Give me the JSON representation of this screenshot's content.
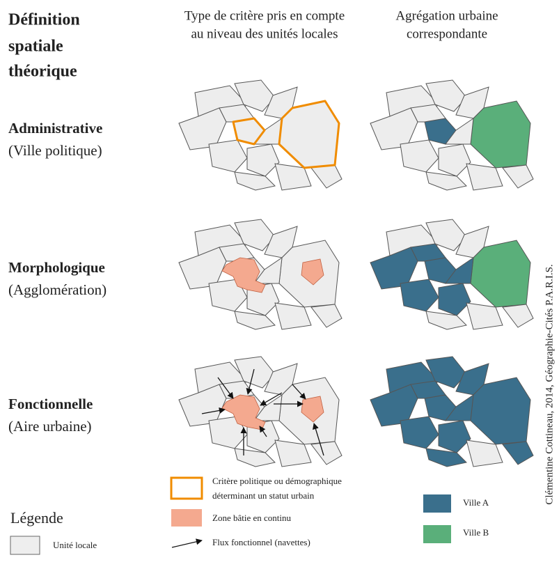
{
  "header": {
    "title_lines": [
      "Définition",
      "spatiale",
      "théorique"
    ]
  },
  "columns": [
    {
      "lines": [
        "Type de critère pris en compte",
        "au niveau des unités locales"
      ]
    },
    {
      "lines": [
        "Agrégation urbaine",
        "correspondante"
      ]
    }
  ],
  "rows": [
    {
      "title": "Administrative",
      "subtitle": "(Ville politique)"
    },
    {
      "title": "Morphologique",
      "subtitle": "(Agglomération)"
    },
    {
      "title": "Fonctionnelle",
      "subtitle": "(Aire urbaine)"
    }
  ],
  "legend": {
    "title": "Légende",
    "unit": "Unité locale",
    "criterion_lines": [
      "Critère politique ou démographique",
      "déterminant un statut urbain"
    ],
    "built": "Zone bâtie en continu",
    "flow": "Flux fonctionnel (navettes)",
    "city_a": "Ville A",
    "city_b": "Ville B"
  },
  "credit": "Clémentine Cottineau, 2014, Géographie-Cités P.A.R.I.S."
}
